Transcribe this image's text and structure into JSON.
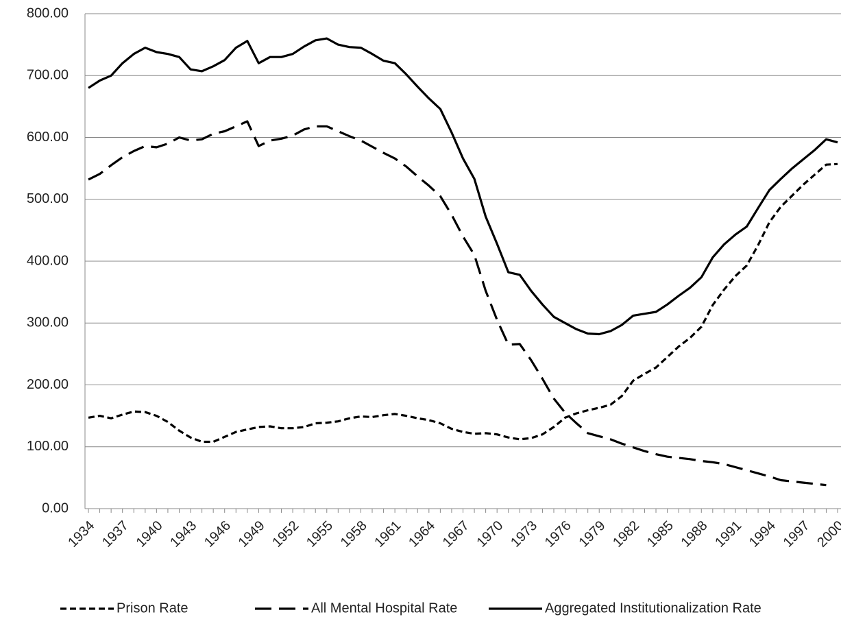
{
  "chart_data": {
    "type": "line",
    "x": [
      1934,
      1935,
      1936,
      1937,
      1938,
      1939,
      1940,
      1941,
      1942,
      1943,
      1944,
      1945,
      1946,
      1947,
      1948,
      1949,
      1950,
      1951,
      1952,
      1953,
      1954,
      1955,
      1956,
      1957,
      1958,
      1959,
      1960,
      1961,
      1962,
      1963,
      1964,
      1965,
      1966,
      1967,
      1968,
      1969,
      1970,
      1971,
      1972,
      1973,
      1974,
      1975,
      1976,
      1977,
      1978,
      1979,
      1980,
      1981,
      1982,
      1983,
      1984,
      1985,
      1986,
      1987,
      1988,
      1989,
      1990,
      1991,
      1992,
      1993,
      1994,
      1995,
      1996,
      1997,
      1998,
      1999,
      2000
    ],
    "xlim": [
      1934,
      2000
    ],
    "xticks": [
      1934,
      1937,
      1940,
      1943,
      1946,
      1949,
      1952,
      1955,
      1958,
      1961,
      1964,
      1967,
      1970,
      1973,
      1976,
      1979,
      1982,
      1985,
      1988,
      1991,
      1994,
      1997,
      2000
    ],
    "ylim": [
      0,
      800
    ],
    "yticks": [
      {
        "value": 0,
        "label": "0.00"
      },
      {
        "value": 100,
        "label": "100.00"
      },
      {
        "value": 200,
        "label": "200.00"
      },
      {
        "value": 300,
        "label": "300.00"
      },
      {
        "value": 400,
        "label": "400.00"
      },
      {
        "value": 500,
        "label": "500.00"
      },
      {
        "value": 600,
        "label": "600.00"
      },
      {
        "value": 700,
        "label": "700.00"
      },
      {
        "value": 800,
        "label": "800.00"
      }
    ],
    "grid": true,
    "legend": "bottom",
    "series": [
      {
        "name": "Prison Rate",
        "color": "#000000",
        "dash": "short",
        "values": [
          147,
          150,
          146,
          152,
          157,
          156,
          150,
          140,
          126,
          115,
          108,
          108,
          116,
          124,
          128,
          132,
          133,
          130,
          130,
          132,
          138,
          139,
          141,
          146,
          149,
          148,
          151,
          153,
          150,
          146,
          143,
          138,
          129,
          124,
          121,
          122,
          120,
          115,
          112,
          114,
          120,
          132,
          147,
          154,
          159,
          163,
          168,
          182,
          207,
          218,
          228,
          245,
          262,
          276,
          294,
          329,
          354,
          376,
          393,
          426,
          463,
          488,
          506,
          524,
          540,
          556,
          557
        ]
      },
      {
        "name": "All Mental Hospital Rate",
        "color": "#000000",
        "dash": "long",
        "values": [
          532,
          541,
          555,
          568,
          578,
          586,
          584,
          590,
          600,
          595,
          597,
          606,
          610,
          618,
          626,
          586,
          595,
          598,
          603,
          613,
          618,
          618,
          610,
          602,
          595,
          585,
          575,
          566,
          553,
          537,
          522,
          505,
          475,
          440,
          410,
          352,
          305,
          265,
          266,
          240,
          210,
          178,
          155,
          138,
          122,
          117,
          112,
          105,
          99,
          93,
          88,
          84,
          82,
          80,
          77,
          75,
          72,
          67,
          62,
          57,
          52,
          46,
          44,
          42,
          40,
          38,
          null
        ]
      },
      {
        "name": "Aggregated Institutionalization Rate",
        "color": "#000000",
        "dash": "solid",
        "values": [
          680,
          692,
          700,
          720,
          735,
          745,
          738,
          735,
          730,
          710,
          707,
          715,
          725,
          745,
          756,
          720,
          730,
          730,
          735,
          747,
          757,
          760,
          750,
          746,
          745,
          735,
          724,
          720,
          702,
          682,
          663,
          646,
          608,
          566,
          533,
          472,
          428,
          382,
          378,
          352,
          330,
          310,
          300,
          290,
          283,
          282,
          287,
          297,
          312,
          315,
          318,
          330,
          344,
          357,
          374,
          406,
          427,
          443,
          456,
          486,
          515,
          533,
          550,
          565,
          580,
          597,
          592
        ]
      }
    ]
  }
}
